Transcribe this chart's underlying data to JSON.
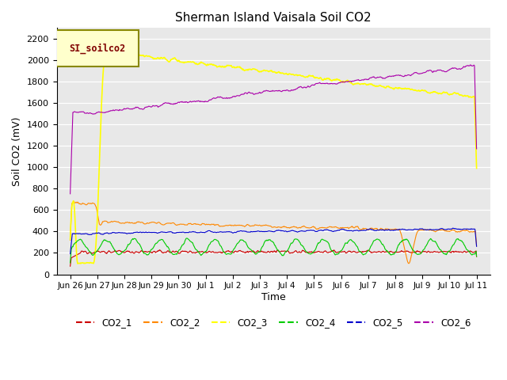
{
  "title": "Sherman Island Vaisala Soil CO2",
  "ylabel": "Soil CO2 (mV)",
  "xlabel": "Time",
  "legend_label": "SI_soilco2",
  "ylim": [
    0,
    2300
  ],
  "yticks": [
    0,
    200,
    400,
    600,
    800,
    1000,
    1200,
    1400,
    1600,
    1800,
    2000,
    2200
  ],
  "background_color": "#e8e8e8",
  "series": {
    "CO2_1": {
      "color": "#cc0000",
      "lw": 0.8
    },
    "CO2_2": {
      "color": "#ff8800",
      "lw": 0.8
    },
    "CO2_3": {
      "color": "#ffff00",
      "lw": 1.2
    },
    "CO2_4": {
      "color": "#00cc00",
      "lw": 0.8
    },
    "CO2_5": {
      "color": "#0000cc",
      "lw": 0.8
    },
    "CO2_6": {
      "color": "#aa00aa",
      "lw": 0.8
    }
  },
  "tick_labels": [
    "Jun 26",
    "Jun 27",
    "Jun 28",
    "Jun 29",
    "Jun 30",
    "Jul 1",
    "Jul 2",
    "Jul 3",
    "Jul 4",
    "Jul 5",
    "Jul 6",
    "Jul 7",
    "Jul 8",
    "Jul 9",
    "Jul 10",
    "Jul 11"
  ],
  "xlim_start": -0.5,
  "xlim_end": 15.5
}
